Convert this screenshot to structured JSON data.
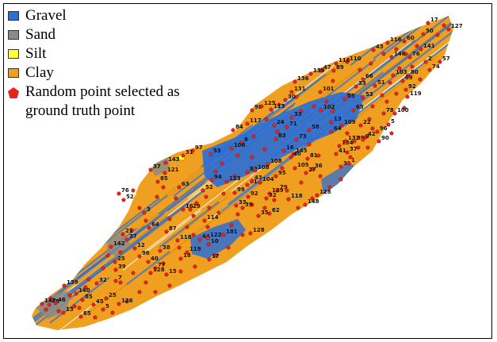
{
  "legend": {
    "items": [
      {
        "label": "Gravel",
        "color": "#2b6fd6"
      },
      {
        "label": "Sand",
        "color": "#8a8a8a"
      },
      {
        "label": "Silt",
        "color": "#ffff33"
      },
      {
        "label": "Clay",
        "color": "#f0a020"
      }
    ],
    "point_label": "Random point selected as ground truth point",
    "point_color": "#e8231b"
  },
  "map": {
    "colors": {
      "clay": "#f0a020",
      "gravel": "#2b6fd6",
      "sand": "#8a8a8a",
      "silt": "#ffff33",
      "point": "#e8231b"
    },
    "points": [
      [
        "17",
        540,
        29
      ],
      [
        "127",
        566,
        37
      ],
      [
        "50",
        534,
        43
      ],
      [
        "116",
        489,
        54
      ],
      [
        "60",
        510,
        52
      ],
      [
        "43",
        471,
        63
      ],
      [
        "141",
        531,
        62
      ],
      [
        "146",
        494,
        72
      ],
      [
        "76",
        517,
        72
      ],
      [
        "57",
        555,
        78
      ],
      [
        "2",
        537,
        78
      ],
      [
        "74",
        542,
        88
      ],
      [
        "103",
        496,
        95
      ],
      [
        "80",
        515,
        95
      ],
      [
        "69",
        508,
        102
      ],
      [
        "92",
        512,
        113
      ],
      [
        "119",
        514,
        122
      ],
      [
        "78",
        484,
        143
      ],
      [
        "100",
        498,
        143
      ],
      [
        "5",
        490,
        157
      ],
      [
        "96",
        476,
        166
      ],
      [
        "90",
        478,
        178
      ],
      [
        "66",
        458,
        100
      ],
      [
        "51",
        473,
        108
      ],
      [
        "33",
        449,
        109
      ],
      [
        "53",
        458,
        123
      ],
      [
        "55",
        435,
        125
      ],
      [
        "65",
        446,
        139
      ],
      [
        "22",
        455,
        158
      ],
      [
        "42",
        461,
        173
      ],
      [
        "132",
        436,
        178
      ],
      [
        "89",
        447,
        178
      ],
      [
        "9",
        458,
        176
      ],
      [
        "110",
        438,
        78
      ],
      [
        "116",
        424,
        80
      ],
      [
        "47",
        405,
        89
      ],
      [
        "89",
        421,
        89
      ],
      [
        "139",
        392,
        93
      ],
      [
        "136",
        372,
        103
      ],
      [
        "131",
        368,
        116
      ],
      [
        "101",
        404,
        116
      ],
      [
        "30",
        360,
        126
      ],
      [
        "115",
        342,
        138
      ],
      [
        "98",
        318,
        139
      ],
      [
        "125",
        330,
        134
      ],
      [
        "117",
        312,
        156
      ],
      [
        "84",
        294,
        164
      ],
      [
        "8",
        305,
        180
      ],
      [
        "33",
        368,
        148
      ],
      [
        "71",
        362,
        160
      ],
      [
        "24",
        346,
        158
      ],
      [
        "102",
        405,
        139
      ],
      [
        "13",
        418,
        154
      ],
      [
        "58",
        390,
        164
      ],
      [
        "109",
        431,
        158
      ],
      [
        "64",
        418,
        166
      ],
      [
        "134",
        428,
        184
      ],
      [
        "37",
        438,
        192
      ],
      [
        "106",
        292,
        187
      ],
      [
        "83",
        348,
        175
      ],
      [
        "73",
        374,
        176
      ],
      [
        "16",
        358,
        190
      ],
      [
        "145",
        370,
        194
      ],
      [
        "108",
        338,
        207
      ],
      [
        "40",
        367,
        198
      ],
      [
        "105",
        372,
        212
      ],
      [
        "81",
        388,
        200
      ],
      [
        "41",
        424,
        194
      ],
      [
        "31",
        430,
        210
      ],
      [
        "1",
        440,
        206
      ],
      [
        "36",
        394,
        213
      ],
      [
        "27",
        386,
        218
      ],
      [
        "95",
        348,
        222
      ],
      [
        "79",
        350,
        240
      ],
      [
        "82",
        312,
        217
      ],
      [
        "108",
        322,
        215
      ],
      [
        "91",
        312,
        233
      ],
      [
        "43",
        318,
        228
      ],
      [
        "104",
        328,
        230
      ],
      [
        "129",
        340,
        244
      ],
      [
        "118",
        364,
        251
      ],
      [
        "148",
        385,
        258
      ],
      [
        "128",
        400,
        246
      ],
      [
        "94",
        267,
        227
      ],
      [
        "123",
        286,
        229
      ],
      [
        "52",
        256,
        240
      ],
      [
        "99",
        296,
        243
      ],
      [
        "32",
        336,
        250
      ],
      [
        "33",
        298,
        259
      ],
      [
        "92",
        313,
        248
      ],
      [
        "39",
        306,
        262
      ],
      [
        "62",
        340,
        269
      ],
      [
        "35",
        326,
        272
      ],
      [
        "16",
        231,
        264
      ],
      [
        "29",
        240,
        264
      ],
      [
        "3",
        182,
        268
      ],
      [
        "52",
        156,
        252
      ],
      [
        "76",
        150,
        244
      ],
      [
        "63",
        226,
        236
      ],
      [
        "97",
        243,
        190
      ],
      [
        "55",
        266,
        194
      ],
      [
        "31",
        231,
        196
      ],
      [
        "143",
        209,
        205
      ],
      [
        "121",
        208,
        218
      ],
      [
        "37",
        190,
        214
      ],
      [
        "85",
        199,
        229
      ],
      [
        "64",
        188,
        287
      ],
      [
        "87",
        210,
        292
      ],
      [
        "21",
        155,
        295
      ],
      [
        "37",
        160,
        302
      ],
      [
        "142",
        140,
        311
      ],
      [
        "12",
        170,
        313
      ],
      [
        "96",
        176,
        323
      ],
      [
        "38",
        202,
        316
      ],
      [
        "118",
        224,
        303
      ],
      [
        "128",
        316,
        294
      ],
      [
        "44",
        252,
        302
      ],
      [
        "10",
        263,
        308
      ],
      [
        "18",
        228,
        326
      ],
      [
        "119",
        236,
        318
      ],
      [
        "17",
        264,
        327
      ],
      [
        "39",
        146,
        340
      ],
      [
        "25",
        145,
        330
      ],
      [
        "40",
        187,
        330
      ],
      [
        "77",
        196,
        338
      ],
      [
        "15",
        210,
        346
      ],
      [
        "128",
        190,
        344
      ],
      [
        "32",
        122,
        357
      ],
      [
        "139",
        81,
        360
      ],
      [
        "140",
        96,
        370
      ],
      [
        "85",
        104,
        378
      ],
      [
        "25",
        134,
        376
      ],
      [
        "147",
        53,
        383
      ],
      [
        "48",
        62,
        384
      ],
      [
        "46",
        70,
        382
      ],
      [
        "13",
        80,
        394
      ],
      [
        "65",
        102,
        399
      ],
      [
        "45",
        118,
        384
      ],
      [
        "5",
        130,
        390
      ],
      [
        "126",
        150,
        383
      ],
      [
        "7",
        146,
        354
      ],
      [
        "114",
        258,
        278
      ],
      [
        "181",
        282,
        296
      ],
      [
        "122",
        262,
        300
      ]
    ],
    "extra_points": [
      [
        560,
        32
      ],
      [
        552,
        44
      ],
      [
        526,
        58
      ],
      [
        520,
        84
      ],
      [
        504,
        86
      ],
      [
        492,
        104
      ],
      [
        500,
        118
      ],
      [
        482,
        120
      ],
      [
        470,
        134
      ],
      [
        488,
        128
      ],
      [
        466,
        150
      ],
      [
        470,
        162
      ],
      [
        452,
        186
      ],
      [
        442,
        198
      ],
      [
        420,
        102
      ],
      [
        412,
        128
      ],
      [
        396,
        134
      ],
      [
        380,
        140
      ],
      [
        374,
        122
      ],
      [
        352,
        132
      ],
      [
        336,
        150
      ],
      [
        320,
        172
      ],
      [
        300,
        196
      ],
      [
        280,
        206
      ],
      [
        272,
        216
      ],
      [
        260,
        248
      ],
      [
        248,
        256
      ],
      [
        276,
        268
      ],
      [
        292,
        284
      ],
      [
        306,
        296
      ],
      [
        288,
        312
      ],
      [
        272,
        322
      ],
      [
        246,
        336
      ],
      [
        228,
        342
      ],
      [
        214,
        360
      ],
      [
        196,
        368
      ],
      [
        176,
        368
      ],
      [
        160,
        380
      ],
      [
        142,
        394
      ],
      [
        120,
        400
      ],
      [
        100,
        388
      ],
      [
        88,
        372
      ],
      [
        112,
        352
      ],
      [
        136,
        322
      ],
      [
        166,
        290
      ],
      [
        176,
        262
      ],
      [
        168,
        240
      ],
      [
        198,
        248
      ],
      [
        214,
        276
      ],
      [
        236,
        286
      ],
      [
        356,
        212
      ],
      [
        380,
        230
      ],
      [
        404,
        222
      ],
      [
        416,
        236
      ],
      [
        430,
        226
      ],
      [
        402,
        196
      ],
      [
        390,
        182
      ],
      [
        420,
        140
      ],
      [
        440,
        120
      ],
      [
        454,
        88
      ],
      [
        468,
        80
      ],
      [
        484,
        68
      ],
      [
        500,
        62
      ],
      [
        512,
        68
      ],
      [
        530,
        100
      ],
      [
        510,
        136
      ],
      [
        494,
        168
      ],
      [
        464,
        186
      ],
      [
        438,
        168
      ],
      [
        350,
        166
      ],
      [
        334,
        188
      ],
      [
        318,
        198
      ],
      [
        296,
        222
      ],
      [
        282,
        244
      ],
      [
        264,
        262
      ],
      [
        244,
        272
      ],
      [
        222,
        250
      ],
      [
        206,
        236
      ],
      [
        184,
        278
      ],
      [
        152,
        318
      ],
      [
        130,
        338
      ],
      [
        108,
        362
      ],
      [
        94,
        386
      ],
      [
        74,
        392
      ],
      [
        64,
        376
      ],
      [
        58,
        390
      ],
      [
        152,
        356
      ],
      [
        168,
        344
      ],
      [
        184,
        356
      ],
      [
        206,
        332
      ],
      [
        226,
        312
      ],
      [
        244,
        296
      ],
      [
        262,
        286
      ],
      [
        300,
        270
      ],
      [
        318,
        258
      ],
      [
        334,
        262
      ],
      [
        346,
        252
      ],
      [
        362,
        240
      ],
      [
        376,
        262
      ],
      [
        394,
        250
      ]
    ]
  }
}
